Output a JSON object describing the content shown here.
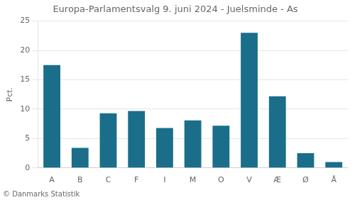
{
  "chart_data": {
    "type": "bar",
    "title": "Europa-Parlamentsvalg 9. juni 2024 - Juelsminde - As",
    "ylabel": "Pct.",
    "footer": "© Danmarks Statistik",
    "categories": [
      "A",
      "B",
      "C",
      "F",
      "I",
      "M",
      "O",
      "V",
      "Æ",
      "Ø",
      "Å"
    ],
    "values": [
      17.5,
      3.4,
      9.3,
      9.7,
      6.8,
      8.1,
      7.2,
      23.0,
      12.2,
      2.5,
      1.0
    ],
    "color": "#1a6e8a",
    "ylim": [
      0,
      25
    ],
    "yticks": [
      0,
      5,
      10,
      15,
      20,
      25
    ],
    "grid": true
  }
}
